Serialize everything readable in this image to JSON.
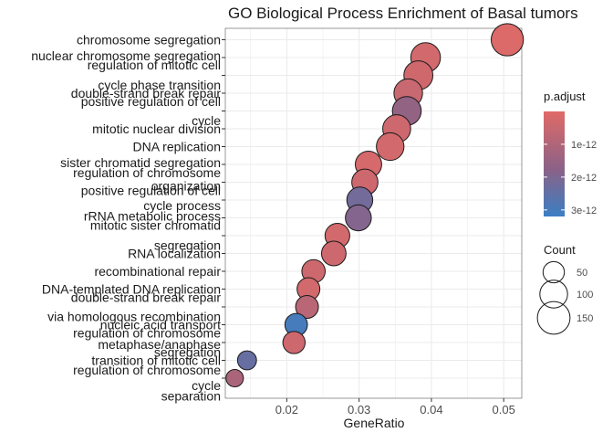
{
  "chart_data": {
    "type": "scatter",
    "title": "GO Biological Process Enrichment of Basal tumors",
    "xlabel": "GeneRatio",
    "ylabel": "",
    "xlim": [
      0.0115,
      0.0525
    ],
    "x_ticks": [
      {
        "value": 0.02,
        "label": "0.02"
      },
      {
        "value": 0.03,
        "label": "0.03"
      },
      {
        "value": 0.04,
        "label": "0.04"
      },
      {
        "value": 0.05,
        "label": "0.05"
      }
    ],
    "grid": true,
    "y_label_lines": [
      {
        "text": "chromosome segregation",
        "pos": 1
      },
      {
        "text": "nuclear chromosome segregation",
        "pos": 1.9
      },
      {
        "text": "regulation of mitotic cell",
        "pos": 2.4
      },
      {
        "text": "cycle phase transition",
        "pos": 3.55
      },
      {
        "text": "double-strand break repair",
        "pos": 4
      },
      {
        "text": "positive regulation of cell",
        "pos": 4.45
      },
      {
        "text": "cycle",
        "pos": 5.55
      },
      {
        "text": "mitotic nuclear division",
        "pos": 6
      },
      {
        "text": "DNA replication",
        "pos": 7
      },
      {
        "text": "sister chromatid segregation",
        "pos": 7.9
      },
      {
        "text": "regulation of chromosome",
        "pos": 8.45
      },
      {
        "text": "organization",
        "pos": 9.2
      },
      {
        "text": "positive regulation of cell",
        "pos": 9.45
      },
      {
        "text": "cycle process",
        "pos": 10.3
      },
      {
        "text": "rRNA metabolic process",
        "pos": 10.9
      },
      {
        "text": "mitotic sister chromatid",
        "pos": 11.4
      },
      {
        "text": "segregation",
        "pos": 12.55
      },
      {
        "text": "RNA localization",
        "pos": 13
      },
      {
        "text": "recombinational repair",
        "pos": 14
      },
      {
        "text": "DNA-templated DNA replication",
        "pos": 15
      },
      {
        "text": "double-strand break repair",
        "pos": 15.45
      },
      {
        "text": "via homologous recombination",
        "pos": 16.55
      },
      {
        "text": "nucleic acid transport",
        "pos": 17
      },
      {
        "text": "regulation of chromosome",
        "pos": 17.45
      },
      {
        "text": "metaphase/anaphase",
        "pos": 18.1
      },
      {
        "text": "segregation",
        "pos": 18.55
      },
      {
        "text": "transition of mitotic cell",
        "pos": 19
      },
      {
        "text": "regulation of chromosome",
        "pos": 19.55
      },
      {
        "text": "cycle",
        "pos": 20.4
      },
      {
        "text": "separation",
        "pos": 21
      }
    ],
    "points": [
      {
        "x": 0.0505,
        "count": 145,
        "p_adjust": 1e-13
      },
      {
        "x": 0.0392,
        "count": 118,
        "p_adjust": 3e-13
      },
      {
        "x": 0.0382,
        "count": 112,
        "p_adjust": 3.5e-13
      },
      {
        "x": 0.0368,
        "count": 108,
        "p_adjust": 5e-13
      },
      {
        "x": 0.0366,
        "count": 110,
        "p_adjust": 1.6e-12
      },
      {
        "x": 0.0352,
        "count": 102,
        "p_adjust": 4e-13
      },
      {
        "x": 0.0343,
        "count": 99,
        "p_adjust": 3e-13
      },
      {
        "x": 0.0313,
        "count": 88,
        "p_adjust": 2e-13
      },
      {
        "x": 0.0308,
        "count": 86,
        "p_adjust": 4e-13
      },
      {
        "x": 0.0301,
        "count": 84,
        "p_adjust": 2.2e-12
      },
      {
        "x": 0.0299,
        "count": 84,
        "p_adjust": 1.9e-12
      },
      {
        "x": 0.027,
        "count": 74,
        "p_adjust": 3e-13
      },
      {
        "x": 0.0265,
        "count": 73,
        "p_adjust": 4e-13
      },
      {
        "x": 0.0237,
        "count": 64,
        "p_adjust": 4e-13
      },
      {
        "x": 0.023,
        "count": 60,
        "p_adjust": 3e-13
      },
      {
        "x": 0.0228,
        "count": 60,
        "p_adjust": 8e-13
      },
      {
        "x": 0.0213,
        "count": 58,
        "p_adjust": 3e-12
      },
      {
        "x": 0.021,
        "count": 56,
        "p_adjust": 4e-13
      },
      {
        "x": 0.0145,
        "count": 36,
        "p_adjust": 2.4e-12
      },
      {
        "x": 0.0128,
        "count": 28,
        "p_adjust": 1.1e-12
      }
    ],
    "point_positions": [
      1,
      2,
      3,
      4,
      5,
      6,
      7,
      8,
      9,
      10,
      11,
      12,
      13,
      14,
      15,
      16,
      17,
      18,
      19,
      20
    ],
    "color_legend": {
      "title": "p.adjust",
      "ticks": [
        {
          "value": 1e-12,
          "label": "1e-12"
        },
        {
          "value": 2e-12,
          "label": "2e-12"
        },
        {
          "value": 3e-12,
          "label": "3e-12"
        }
      ],
      "range": [
        0,
        3.2e-12
      ],
      "low_color": "#e06a67",
      "mid_color": "#8b6287",
      "high_color": "#3b7fc4"
    },
    "size_legend": {
      "title": "Count",
      "entries": [
        {
          "value": 50,
          "label": "50"
        },
        {
          "value": 100,
          "label": "100"
        },
        {
          "value": 150,
          "label": "150"
        }
      ]
    },
    "colors": {
      "panel_background": "#ffffff",
      "grid": "#ebebeb",
      "axis_text": "#1a1a1a",
      "point_outline": "#1a1a1a"
    }
  }
}
